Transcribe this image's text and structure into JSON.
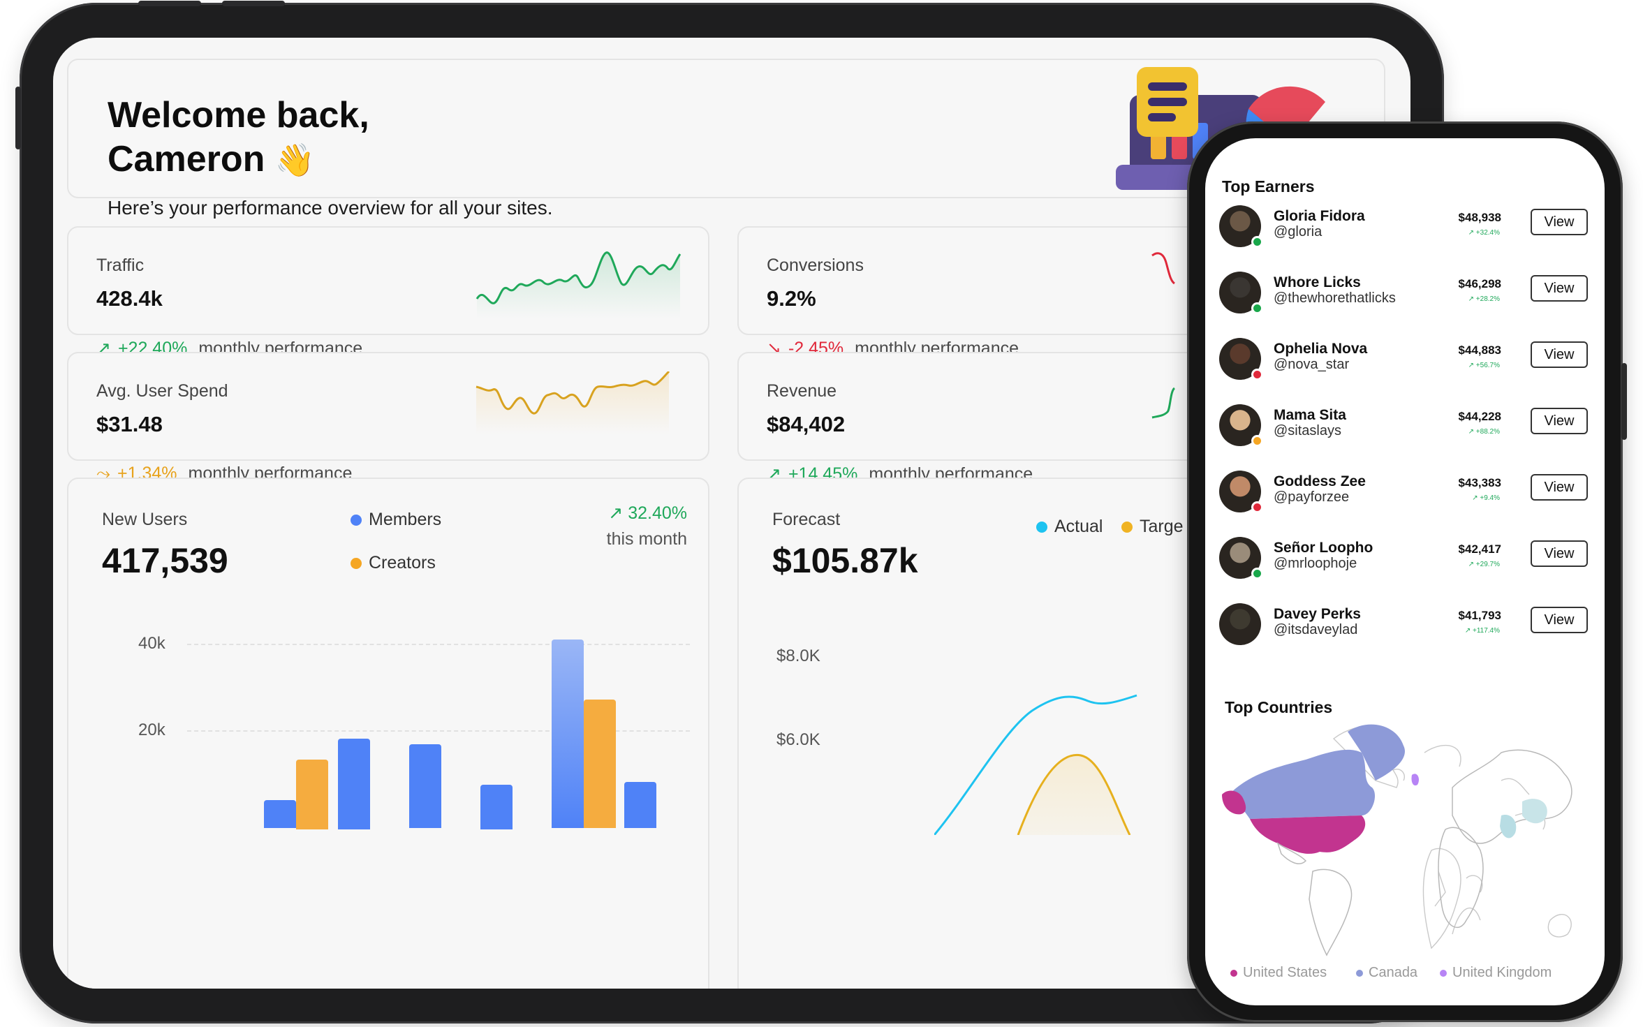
{
  "welcome": {
    "title_line1": "Welcome back,",
    "title_line2": "Cameron",
    "wave_emoji": "👋",
    "subtitle": "Here’s your performance overview for all your sites."
  },
  "metrics": [
    {
      "label": "Traffic",
      "value": "428.4k",
      "change": "+22.40%",
      "direction": "up",
      "desc": "monthly performance",
      "color": "#1fa85a"
    },
    {
      "label": "Conversions",
      "value": "9.2%",
      "change": "-2.45%",
      "direction": "down",
      "desc": "monthly performance",
      "color": "#e0293b"
    },
    {
      "label": "Avg. User Spend",
      "value": "$31.48",
      "change": "+1.34%",
      "direction": "flat",
      "desc": "monthly performance",
      "color": "#e7a21c"
    },
    {
      "label": "Revenue",
      "value": "$84,402",
      "change": "+14.45%",
      "direction": "up",
      "desc": "monthly performance",
      "color": "#1fa85a"
    }
  ],
  "new_users": {
    "label": "New Users",
    "value": "417,539",
    "change": "32.40%",
    "change_desc": "this month",
    "legend": [
      {
        "name": "Members",
        "color": "#4f82f7"
      },
      {
        "name": "Creators",
        "color": "#f5a623"
      }
    ],
    "y_ticks": [
      "40k",
      "20k"
    ]
  },
  "forecast": {
    "label": "Forecast",
    "value": "$105.87k",
    "legend": [
      {
        "name": "Actual",
        "color": "#1ec3f0"
      },
      {
        "name": "Targe",
        "color": "#f0b323"
      }
    ],
    "y_ticks": [
      "$8.0K",
      "$6.0K"
    ]
  },
  "phone": {
    "top_earners_title": "Top Earners",
    "view_label": "View",
    "earners": [
      {
        "name": "Gloria Fidora",
        "handle": "@gloria",
        "amount": "$48,938",
        "change": "+32.4%",
        "status_color": "#19a74a",
        "avatar_color": "#6b5846"
      },
      {
        "name": "Whore Licks",
        "handle": "@thewhorethatlicks",
        "amount": "$46,298",
        "change": "+28.2%",
        "status_color": "#19a74a",
        "avatar_color": "#3a3632"
      },
      {
        "name": "Ophelia Nova",
        "handle": "@nova_star",
        "amount": "$44,883",
        "change": "+56.7%",
        "status_color": "#e0293b",
        "avatar_color": "#5a3a2c"
      },
      {
        "name": "Mama Sita",
        "handle": "@sitaslays",
        "amount": "$44,228",
        "change": "+88.2%",
        "status_color": "#f5a623",
        "avatar_color": "#d9b48c"
      },
      {
        "name": "Goddess Zee",
        "handle": "@payforzee",
        "amount": "$43,383",
        "change": "+9.4%",
        "status_color": "#e0293b",
        "avatar_color": "#c08a68"
      },
      {
        "name": "Señor Loopho",
        "handle": "@mrloophoje",
        "amount": "$42,417",
        "change": "+29.7%",
        "status_color": "#19a74a",
        "avatar_color": "#9a8c7a"
      },
      {
        "name": "Davey Perks",
        "handle": "@itsdaveylad",
        "amount": "$41,793",
        "change": "+117.4%",
        "status_color": "",
        "avatar_color": "#3e3a30"
      }
    ],
    "top_countries_title": "Top Countries",
    "countries": [
      {
        "name": "United States",
        "color": "#c2348f"
      },
      {
        "name": "Canada",
        "color": "#8d9ad8"
      },
      {
        "name": "United Kingdom",
        "color": "#b784f5"
      }
    ]
  },
  "icons": [
    "trend-up-icon",
    "trend-down-icon",
    "trend-flat-icon",
    "waving-hand-icon"
  ]
}
